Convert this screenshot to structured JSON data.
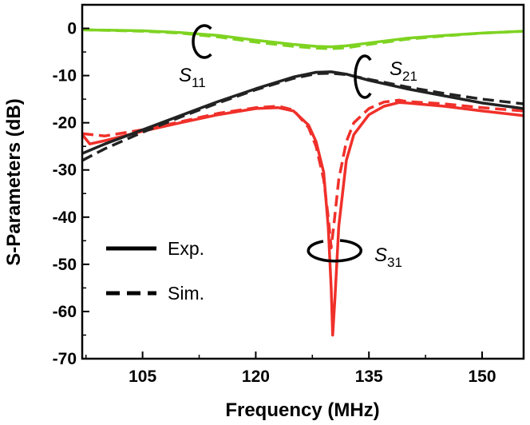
{
  "chart_data": {
    "type": "line",
    "xlabel": "Frequency (MHz)",
    "ylabel": "S-Parameters (dB)",
    "xlim": [
      97,
      155.5
    ],
    "ylim": [
      -70,
      5
    ],
    "xticks": [
      105,
      120,
      135,
      150
    ],
    "yticks": [
      0,
      -10,
      -20,
      -30,
      -40,
      -50,
      -60,
      -70
    ],
    "legend": [
      {
        "label": "Exp.",
        "style": "solid"
      },
      {
        "label": "Sim.",
        "style": "dashed"
      }
    ],
    "annotations": [
      {
        "text": "S",
        "sub": "11"
      },
      {
        "text": "S",
        "sub": "21"
      },
      {
        "text": "S",
        "sub": "31"
      }
    ],
    "colors": {
      "S11": "#7ed321",
      "S21": "#222222",
      "S31": "#f0302a"
    },
    "series": [
      {
        "name": "S11 Exp.",
        "param": "S11",
        "style": "solid",
        "x": [
          97,
          105,
          110,
          115,
          120,
          125,
          128,
          130,
          132,
          135,
          140,
          145,
          150,
          155.5
        ],
        "y": [
          -0.3,
          -0.5,
          -0.9,
          -1.5,
          -2.5,
          -3.4,
          -3.8,
          -3.9,
          -3.7,
          -3.1,
          -2.1,
          -1.5,
          -1.0,
          -0.6
        ]
      },
      {
        "name": "S11 Sim.",
        "param": "S11",
        "style": "dashed",
        "x": [
          97,
          105,
          110,
          115,
          120,
          125,
          128,
          130,
          132,
          135,
          140,
          145,
          150,
          155.5
        ],
        "y": [
          -0.3,
          -0.6,
          -1.0,
          -1.8,
          -2.9,
          -3.8,
          -4.2,
          -4.3,
          -4.1,
          -3.4,
          -2.3,
          -1.6,
          -1.0,
          -0.6
        ]
      },
      {
        "name": "S21 Exp.",
        "param": "S21",
        "style": "solid",
        "x": [
          97,
          100,
          105,
          110,
          115,
          120,
          125,
          128,
          130,
          132,
          135,
          140,
          145,
          150,
          155.5
        ],
        "y": [
          -26.5,
          -24.5,
          -21.5,
          -18.5,
          -15.5,
          -12.8,
          -10.3,
          -9.3,
          -9.2,
          -9.7,
          -11.0,
          -12.8,
          -14.3,
          -15.8,
          -17.0
        ]
      },
      {
        "name": "S21 Sim.",
        "param": "S21",
        "style": "dashed",
        "x": [
          97,
          100,
          105,
          110,
          115,
          120,
          125,
          128,
          130,
          132,
          135,
          140,
          145,
          150,
          155.5
        ],
        "y": [
          -28.0,
          -25.5,
          -22.0,
          -18.8,
          -15.8,
          -13.0,
          -10.6,
          -9.6,
          -9.5,
          -9.8,
          -10.8,
          -12.4,
          -13.8,
          -15.0,
          -16.0
        ]
      },
      {
        "name": "S31 Exp.",
        "param": "S31",
        "style": "solid",
        "x": [
          97,
          98,
          100,
          105,
          110,
          115,
          120,
          123,
          125,
          127,
          128,
          129,
          129.6,
          130,
          130.2,
          130.5,
          131,
          132,
          133,
          135,
          137,
          139,
          140,
          145,
          150,
          155.5
        ],
        "y": [
          -22.5,
          -24.5,
          -23.8,
          -21.8,
          -20.0,
          -18.3,
          -17.0,
          -16.8,
          -17.5,
          -20.5,
          -24.0,
          -30.5,
          -42.0,
          -55.0,
          -65.0,
          -57.0,
          -42.0,
          -28.0,
          -22.5,
          -18.3,
          -16.5,
          -15.7,
          -15.8,
          -16.5,
          -17.5,
          -18.5
        ]
      },
      {
        "name": "S31 Sim.",
        "param": "S31",
        "style": "dashed",
        "x": [
          97,
          100,
          105,
          110,
          115,
          120,
          123,
          125,
          127,
          128,
          129,
          129.6,
          130,
          130.4,
          131,
          132,
          133,
          135,
          137,
          139,
          140,
          145,
          150,
          155.5
        ],
        "y": [
          -22.3,
          -22.8,
          -21.5,
          -19.8,
          -18.0,
          -16.8,
          -16.5,
          -17.3,
          -21.0,
          -25.0,
          -32.0,
          -40.0,
          -46.5,
          -41.0,
          -32.0,
          -24.0,
          -20.0,
          -17.0,
          -15.6,
          -15.2,
          -15.5,
          -16.0,
          -16.8,
          -17.5
        ]
      }
    ]
  }
}
